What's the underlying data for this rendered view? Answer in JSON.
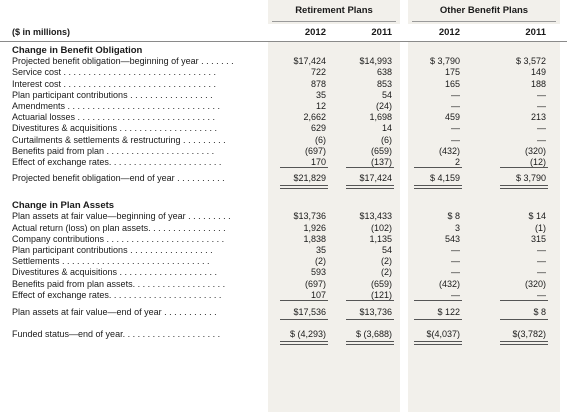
{
  "header": {
    "group1": "Retirement Plans",
    "group2": "Other Benefit Plans",
    "unit_label": "($ in millions)",
    "years": [
      "2012",
      "2011",
      "2012",
      "2011"
    ]
  },
  "section1": {
    "title": "Change in Benefit Obligation",
    "rows": [
      {
        "label": "Projected benefit obligation—beginning of year . . . . . . .",
        "values": [
          "$17,424",
          "$14,993",
          "$ 3,790",
          "$ 3,572"
        ]
      },
      {
        "label": "Service cost . . . . . . . . . . . . . . . . . . . . . . . . . . . . . . .",
        "values": [
          "722",
          "638",
          "175",
          "149"
        ]
      },
      {
        "label": "Interest cost . . . . . . . . . . . . . . . . . . . . . . . . . . . . . . .",
        "values": [
          "878",
          "853",
          "165",
          "188"
        ]
      },
      {
        "label": "Plan participant contributions  . . . . . . . . . . . . . . . . .",
        "values": [
          "35",
          "54",
          "—",
          "—"
        ]
      },
      {
        "label": "Amendments . . . . . . . . . . . . . . . . . . . . . . . . . . . . . . .",
        "values": [
          "12",
          "(24)",
          "—",
          "—"
        ]
      },
      {
        "label": "Actuarial losses . . . . . . . . . . . . . . . . . . . . . . . . . . . .",
        "values": [
          "2,662",
          "1,698",
          "459",
          "213"
        ]
      },
      {
        "label": "Divestitures & acquisitions . . . . . . . . . . . . . . . . . . . .",
        "values": [
          "629",
          "14",
          "—",
          "—"
        ]
      },
      {
        "label": "Curtailments & settlements & restructuring . . . . . . . . .",
        "values": [
          "(6)",
          "(6)",
          "—",
          "—"
        ]
      },
      {
        "label": "Benefits paid from plan  . . . . . . . . . . . . . . . . . . . . . .",
        "values": [
          "(697)",
          "(659)",
          "(432)",
          "(320)"
        ]
      },
      {
        "label": "Effect of exchange rates. . . . . . . . . . . . . . . . . . . . . . .",
        "values": [
          "170",
          "(137)",
          "2",
          "(12)"
        ]
      }
    ],
    "total": {
      "label": "Projected benefit obligation—end of year . . . . . . . . . .",
      "values": [
        "$21,829",
        "$17,424",
        "$ 4,159",
        "$ 3,790"
      ]
    }
  },
  "section2": {
    "title": "Change in Plan Assets",
    "rows": [
      {
        "label": "Plan assets at fair value—beginning of year . . . . . . . . .",
        "values": [
          "$13,736",
          "$13,433",
          "$  8",
          "$  14"
        ]
      },
      {
        "label": "Actual return (loss) on plan assets. . . . . . . . . . . . . . . .",
        "values": [
          "1,926",
          "(102)",
          "3",
          "(1)"
        ]
      },
      {
        "label": "Company contributions . . . . . . . . . . . . . . . . . . . . . . . .",
        "values": [
          "1,838",
          "1,135",
          "543",
          "315"
        ]
      },
      {
        "label": "Plan participant contributions  . . . . . . . . . . . . . . . . .",
        "values": [
          "35",
          "54",
          "—",
          "—"
        ]
      },
      {
        "label": "Settlements  . . . . . . . . . . . . . . . . . . . . . . . . . . . . . .",
        "values": [
          "(2)",
          "(2)",
          "—",
          "—"
        ]
      },
      {
        "label": "Divestitures & acquisitions . . . . . . . . . . . . . . . . . . . .",
        "values": [
          "593",
          "(2)",
          "—",
          "—"
        ]
      },
      {
        "label": "Benefits paid from plan assets. . . . . . . . . . . . . . . . . . .",
        "values": [
          "(697)",
          "(659)",
          "(432)",
          "(320)"
        ]
      },
      {
        "label": "Effect of exchange rates. . . . . . . . . . . . . . . . . . . . . . .",
        "values": [
          "107",
          "(121)",
          "—",
          "—"
        ]
      }
    ],
    "total": {
      "label": "Plan assets at fair value—end of year  . . . . . . . . . . .",
      "values": [
        "$17,536",
        "$13,736",
        "$  122",
        "$  8"
      ]
    }
  },
  "funded": {
    "label": "Funded status—end of year. . . . . . . . . . . . . . . . . . . .",
    "values": [
      "$ (4,293)",
      "$ (3,688)",
      "$(4,037)",
      "$(3,782)"
    ]
  }
}
